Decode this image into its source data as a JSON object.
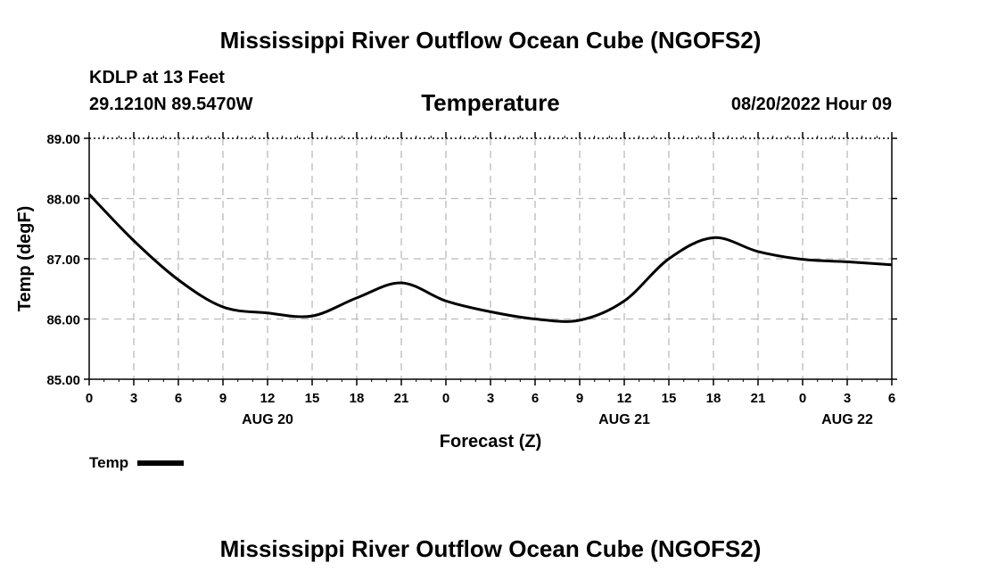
{
  "header": {
    "main_title": "Mississippi River Outflow Ocean Cube (NGOFS2)",
    "station": "KDLP at 13 Feet",
    "coords": "29.1210N  89.5470W",
    "variable": "Temperature",
    "issued": "08/20/2022 Hour 09"
  },
  "footer": {
    "title": "Mississippi River Outflow Ocean Cube (NGOFS2)"
  },
  "legend": {
    "label": "Temp"
  },
  "colors": {
    "line": "#000000",
    "grid": "#bbbbbb"
  },
  "chart_data": {
    "type": "line",
    "title": "Temperature",
    "xlabel": "Forecast (Z)",
    "ylabel": "Temp (degF)",
    "ylim": [
      85.0,
      89.0
    ],
    "xlim": [
      0,
      54
    ],
    "y_ticks": [
      "85.00",
      "86.00",
      "87.00",
      "88.00",
      "89.00"
    ],
    "x_tick_labels": [
      "0",
      "3",
      "6",
      "9",
      "12",
      "15",
      "18",
      "21",
      "0",
      "3",
      "6",
      "9",
      "12",
      "15",
      "18",
      "21",
      "0",
      "3",
      "6"
    ],
    "date_labels": [
      {
        "text": "AUG 20",
        "hour": 12
      },
      {
        "text": "AUG 21",
        "hour": 36
      },
      {
        "text": "AUG 22",
        "hour": 51
      }
    ],
    "grid": true,
    "series": [
      {
        "name": "Temp",
        "x": [
          0,
          3,
          6,
          9,
          12,
          15,
          18,
          21,
          24,
          27,
          30,
          33,
          36,
          39,
          42,
          45,
          48,
          51,
          54
        ],
        "values": [
          88.07,
          87.3,
          86.65,
          86.2,
          86.1,
          86.05,
          86.35,
          86.6,
          86.3,
          86.12,
          86.0,
          85.98,
          86.3,
          87.0,
          87.35,
          87.12,
          86.99,
          86.95,
          86.9
        ]
      }
    ]
  }
}
